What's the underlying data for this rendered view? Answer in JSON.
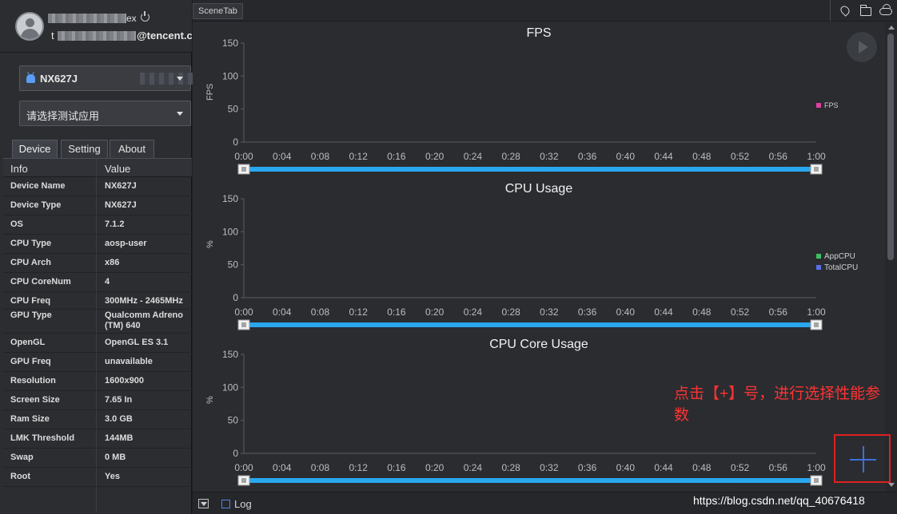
{
  "user": {
    "name_suffix": "ex",
    "email_prefix": "t",
    "email_suffix": "@tencent.c"
  },
  "device_select": {
    "value": "NX627J"
  },
  "app_select": {
    "value": "请选择测试应用"
  },
  "tabs": [
    {
      "label": "Device",
      "active": true
    },
    {
      "label": "Setting",
      "active": false
    },
    {
      "label": "About",
      "active": false
    }
  ],
  "info_table": {
    "headers": [
      "Info",
      "Value"
    ],
    "rows": [
      {
        "key": "Device Name",
        "value": "NX627J"
      },
      {
        "key": "Device Type",
        "value": "NX627J"
      },
      {
        "key": "OS",
        "value": "7.1.2"
      },
      {
        "key": "CPU Type",
        "value": "aosp-user"
      },
      {
        "key": "CPU Arch",
        "value": "x86"
      },
      {
        "key": "CPU CoreNum",
        "value": "4"
      },
      {
        "key": "CPU Freq",
        "value": "300MHz - 2465MHz"
      },
      {
        "key": "GPU Type",
        "value": "Qualcomm Adreno (TM) 640"
      },
      {
        "key": "OpenGL",
        "value": "OpenGL ES 3.1"
      },
      {
        "key": "GPU Freq",
        "value": "unavailable"
      },
      {
        "key": "Resolution",
        "value": "1600x900"
      },
      {
        "key": "Screen Size",
        "value": "7.65 In"
      },
      {
        "key": "Ram Size",
        "value": "3.0 GB"
      },
      {
        "key": "LMK Threshold",
        "value": "144MB"
      },
      {
        "key": "Swap",
        "value": "0 MB"
      },
      {
        "key": "Root",
        "value": "Yes"
      }
    ]
  },
  "main": {
    "scene_tab": "SceneTab",
    "icons": [
      "location-icon",
      "folder-icon",
      "cloud-icon"
    ],
    "annotation": "点击【+】号，进行选择性能参数",
    "add_button_label": "+",
    "log_label": "Log",
    "watermark": "https://blog.csdn.net/qq_40676418"
  },
  "colors": {
    "accent_blue": "#29a8f0",
    "annotation_red": "#ff3333",
    "fps_legend": "#e040a0",
    "appcpu_legend": "#3cc060",
    "totalcpu_legend": "#5b6ee8"
  },
  "chart_data": [
    {
      "type": "line",
      "title": "FPS",
      "ylabel": "FPS",
      "ylim": [
        0,
        150
      ],
      "yticks": [
        "0",
        "50",
        "100",
        "150"
      ],
      "xticks": [
        "0:00",
        "0:04",
        "0:08",
        "0:12",
        "0:16",
        "0:20",
        "0:24",
        "0:28",
        "0:32",
        "0:36",
        "0:40",
        "0:44",
        "0:48",
        "0:52",
        "0:56",
        "1:00"
      ],
      "legend_position": "right",
      "series": [
        {
          "name": "FPS",
          "values": []
        }
      ]
    },
    {
      "type": "line",
      "title": "CPU Usage",
      "ylabel": "%",
      "ylim": [
        0,
        150
      ],
      "yticks": [
        "0",
        "50",
        "100",
        "150"
      ],
      "xticks": [
        "0:00",
        "0:04",
        "0:08",
        "0:12",
        "0:16",
        "0:20",
        "0:24",
        "0:28",
        "0:32",
        "0:36",
        "0:40",
        "0:44",
        "0:48",
        "0:52",
        "0:56",
        "1:00"
      ],
      "legend_position": "right",
      "series": [
        {
          "name": "AppCPU",
          "values": []
        },
        {
          "name": "TotalCPU",
          "values": []
        }
      ]
    },
    {
      "type": "line",
      "title": "CPU Core Usage",
      "ylabel": "%",
      "ylim": [
        0,
        150
      ],
      "yticks": [
        "0",
        "50",
        "100",
        "150"
      ],
      "xticks": [
        "0:00",
        "0:04",
        "0:08",
        "0:12",
        "0:16",
        "0:20",
        "0:24",
        "0:28",
        "0:32",
        "0:36",
        "0:40",
        "0:44",
        "0:48",
        "0:52",
        "0:56",
        "1:00"
      ],
      "legend_position": "right",
      "series": []
    }
  ]
}
